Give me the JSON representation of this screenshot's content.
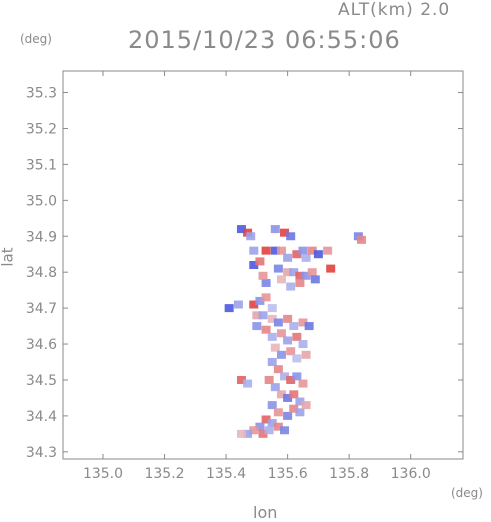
{
  "header": {
    "altitude": "ALT(km) 2.0",
    "timestamp": "2015/10/23 06:55:06"
  },
  "chart_data": {
    "type": "heatmap",
    "title": "2015/10/23 06:55:06",
    "subtitle": "ALT(km) 2.0",
    "xlabel": "lon",
    "ylabel": "lat",
    "x_unit": "(deg)",
    "y_unit": "(deg)",
    "xlim": [
      134.87,
      136.17
    ],
    "ylim": [
      34.28,
      35.36
    ],
    "x_ticks": [
      "135.0",
      "135.2",
      "135.4",
      "135.6",
      "135.8",
      "136.0"
    ],
    "y_ticks": [
      "35.3",
      "35.2",
      "35.1",
      "35.0",
      "34.9",
      "34.8",
      "34.7",
      "34.6",
      "34.5",
      "34.4",
      "34.3"
    ],
    "grid": false,
    "colors": {
      "positive": "#e0413f",
      "negative": "#4b5ae0",
      "neutral": "#eaeaf2",
      "frame": "#8a8a8a"
    },
    "cells": [
      [
        135.45,
        34.92,
        -1
      ],
      [
        135.47,
        34.91,
        1
      ],
      [
        135.48,
        34.9,
        -0.5
      ],
      [
        135.56,
        34.92,
        -0.6
      ],
      [
        135.59,
        34.91,
        1
      ],
      [
        135.61,
        34.9,
        -0.8
      ],
      [
        135.83,
        34.9,
        -0.7
      ],
      [
        135.84,
        34.89,
        0.6
      ],
      [
        135.49,
        34.86,
        -0.5
      ],
      [
        135.53,
        34.86,
        1
      ],
      [
        135.56,
        34.86,
        -1
      ],
      [
        135.58,
        34.86,
        0.5
      ],
      [
        135.6,
        34.84,
        -0.5
      ],
      [
        135.63,
        34.85,
        0.8
      ],
      [
        135.65,
        34.86,
        -0.6
      ],
      [
        135.66,
        34.84,
        -0.4
      ],
      [
        135.68,
        34.86,
        0.6
      ],
      [
        135.7,
        34.85,
        -1
      ],
      [
        135.73,
        34.86,
        0.5
      ],
      [
        135.74,
        34.81,
        1
      ],
      [
        135.49,
        34.82,
        -1
      ],
      [
        135.51,
        34.83,
        0.7
      ],
      [
        135.57,
        34.81,
        -0.7
      ],
      [
        135.6,
        34.8,
        0.4
      ],
      [
        135.62,
        34.8,
        -0.5
      ],
      [
        135.64,
        34.79,
        0.8
      ],
      [
        135.66,
        34.79,
        -0.6
      ],
      [
        135.68,
        34.8,
        0.5
      ],
      [
        135.69,
        34.78,
        -0.8
      ],
      [
        135.58,
        34.78,
        0.3
      ],
      [
        135.61,
        34.76,
        -0.4
      ],
      [
        135.64,
        34.77,
        0.6
      ],
      [
        135.53,
        34.77,
        -0.7
      ],
      [
        135.52,
        34.79,
        0.5
      ],
      [
        135.41,
        34.7,
        -1
      ],
      [
        135.44,
        34.71,
        -0.5
      ],
      [
        135.49,
        34.71,
        1
      ],
      [
        135.51,
        34.72,
        -0.6
      ],
      [
        135.53,
        34.73,
        0.5
      ],
      [
        135.55,
        34.7,
        -0.3
      ],
      [
        135.5,
        34.68,
        0.4
      ],
      [
        135.52,
        34.68,
        -0.5
      ],
      [
        135.55,
        34.67,
        0.3
      ],
      [
        135.57,
        34.66,
        -0.7
      ],
      [
        135.6,
        34.67,
        0.6
      ],
      [
        135.62,
        34.65,
        -0.4
      ],
      [
        135.65,
        34.66,
        0.5
      ],
      [
        135.67,
        34.65,
        -0.8
      ],
      [
        135.5,
        34.65,
        -0.6
      ],
      [
        135.53,
        34.64,
        0.6
      ],
      [
        135.55,
        34.62,
        -0.4
      ],
      [
        135.58,
        34.63,
        0.5
      ],
      [
        135.6,
        34.61,
        -0.5
      ],
      [
        135.63,
        34.62,
        0.7
      ],
      [
        135.65,
        34.6,
        -0.4
      ],
      [
        135.56,
        34.59,
        0.3
      ],
      [
        135.58,
        34.57,
        -0.6
      ],
      [
        135.61,
        34.58,
        0.5
      ],
      [
        135.63,
        34.56,
        -0.3
      ],
      [
        135.66,
        34.57,
        0.4
      ],
      [
        135.55,
        34.55,
        -0.5
      ],
      [
        135.57,
        34.53,
        0.6
      ],
      [
        135.59,
        34.51,
        -0.4
      ],
      [
        135.61,
        34.5,
        0.8
      ],
      [
        135.63,
        34.51,
        -0.6
      ],
      [
        135.65,
        34.49,
        0.5
      ],
      [
        135.54,
        34.5,
        0.6
      ],
      [
        135.56,
        34.48,
        -0.5
      ],
      [
        135.58,
        34.46,
        0.4
      ],
      [
        135.6,
        34.45,
        -0.8
      ],
      [
        135.62,
        34.46,
        0.7
      ],
      [
        135.64,
        34.44,
        -0.5
      ],
      [
        135.45,
        34.5,
        0.8
      ],
      [
        135.47,
        34.49,
        -0.4
      ],
      [
        135.55,
        34.43,
        -0.6
      ],
      [
        135.57,
        34.41,
        0.5
      ],
      [
        135.6,
        34.4,
        -0.7
      ],
      [
        135.62,
        34.42,
        0.6
      ],
      [
        135.64,
        34.41,
        -0.5
      ],
      [
        135.66,
        34.43,
        0.4
      ],
      [
        135.53,
        34.39,
        0.8
      ],
      [
        135.55,
        34.38,
        -0.5
      ],
      [
        135.57,
        34.37,
        0.6
      ],
      [
        135.59,
        34.36,
        -0.7
      ],
      [
        135.51,
        34.37,
        -0.6
      ],
      [
        135.49,
        34.36,
        0.5
      ],
      [
        135.47,
        34.35,
        -0.5
      ],
      [
        135.45,
        34.35,
        0.3
      ],
      [
        135.52,
        34.35,
        0.7
      ],
      [
        135.54,
        34.36,
        -0.4
      ]
    ]
  }
}
